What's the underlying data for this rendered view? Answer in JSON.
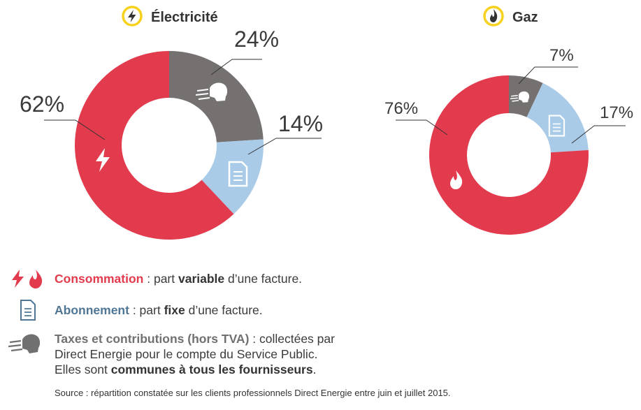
{
  "colors": {
    "consommation": "#e23b4e",
    "abonnement": "#a9cbe8",
    "taxes": "#757171",
    "badge": "#f6d21e"
  },
  "chart_data": [
    {
      "type": "pie",
      "title": "Électricité",
      "icon": "lightning-icon",
      "slices": [
        {
          "category": "Taxes et contributions",
          "value": 24,
          "label": "24%",
          "color": "#757171"
        },
        {
          "category": "Abonnement",
          "value": 14,
          "label": "14%",
          "color": "#a9cbe8"
        },
        {
          "category": "Consommation",
          "value": 62,
          "label": "62%",
          "color": "#e23b4e"
        }
      ]
    },
    {
      "type": "pie",
      "title": "Gaz",
      "icon": "flame-icon",
      "slices": [
        {
          "category": "Taxes et contributions",
          "value": 7,
          "label": "7%",
          "color": "#757171"
        },
        {
          "category": "Abonnement",
          "value": 17,
          "label": "17%",
          "color": "#a9cbe8"
        },
        {
          "category": "Consommation",
          "value": 76,
          "label": "76%",
          "color": "#e23b4e"
        }
      ]
    }
  ],
  "legend": {
    "consommation": {
      "term": "Consommation",
      "pre": " : part ",
      "bold": "variable",
      "post": " d’une facture."
    },
    "abonnement": {
      "term": "Abonnement",
      "pre": " : part ",
      "bold": "fixe",
      "post": " d’une facture."
    },
    "taxes": {
      "term": "Taxes et contributions (hors TVA)",
      "line1_rest": " : collectées par",
      "line2": "Direct Energie pour le compte du Service Public.",
      "line3_pre": "Elles sont ",
      "line3_bold": "communes à tous les fournisseurs",
      "line3_post": "."
    }
  },
  "source": "Source : répartition constatée sur les clients professionnels Direct Energie entre juin et juillet 2015."
}
